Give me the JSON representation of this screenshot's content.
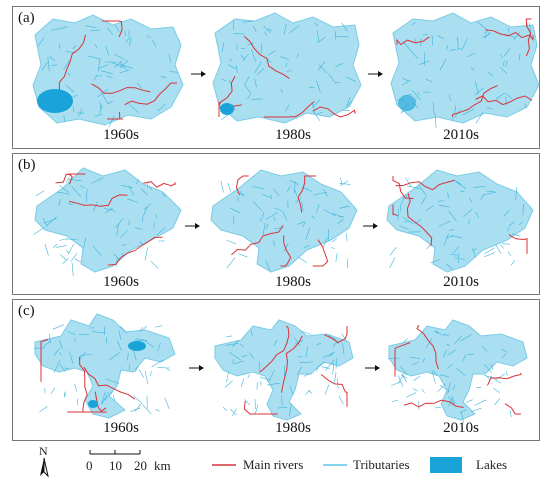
{
  "panels": [
    {
      "label": "(a)",
      "eras": [
        "1960s",
        "1980s",
        "2010s"
      ]
    },
    {
      "label": "(b)",
      "eras": [
        "1960s",
        "1980s",
        "2010s"
      ]
    },
    {
      "label": "(c)",
      "eras": [
        "1960s",
        "1980s",
        "2010s"
      ]
    }
  ],
  "north_arrow": {
    "label": "N"
  },
  "scale_bar": {
    "ticks": [
      "0",
      "10",
      "20"
    ],
    "unit": "km"
  },
  "legend": {
    "main_rivers": {
      "label": "Main rivers",
      "color": "#d9333a"
    },
    "tributaries": {
      "label": "Tributaries",
      "color": "#5fc6e6"
    },
    "lakes": {
      "label": "Lakes",
      "color": "#1aa3d9"
    }
  },
  "colors": {
    "land": "#a9dff0",
    "river": "#d9333a",
    "water": "#1aa3d9"
  }
}
